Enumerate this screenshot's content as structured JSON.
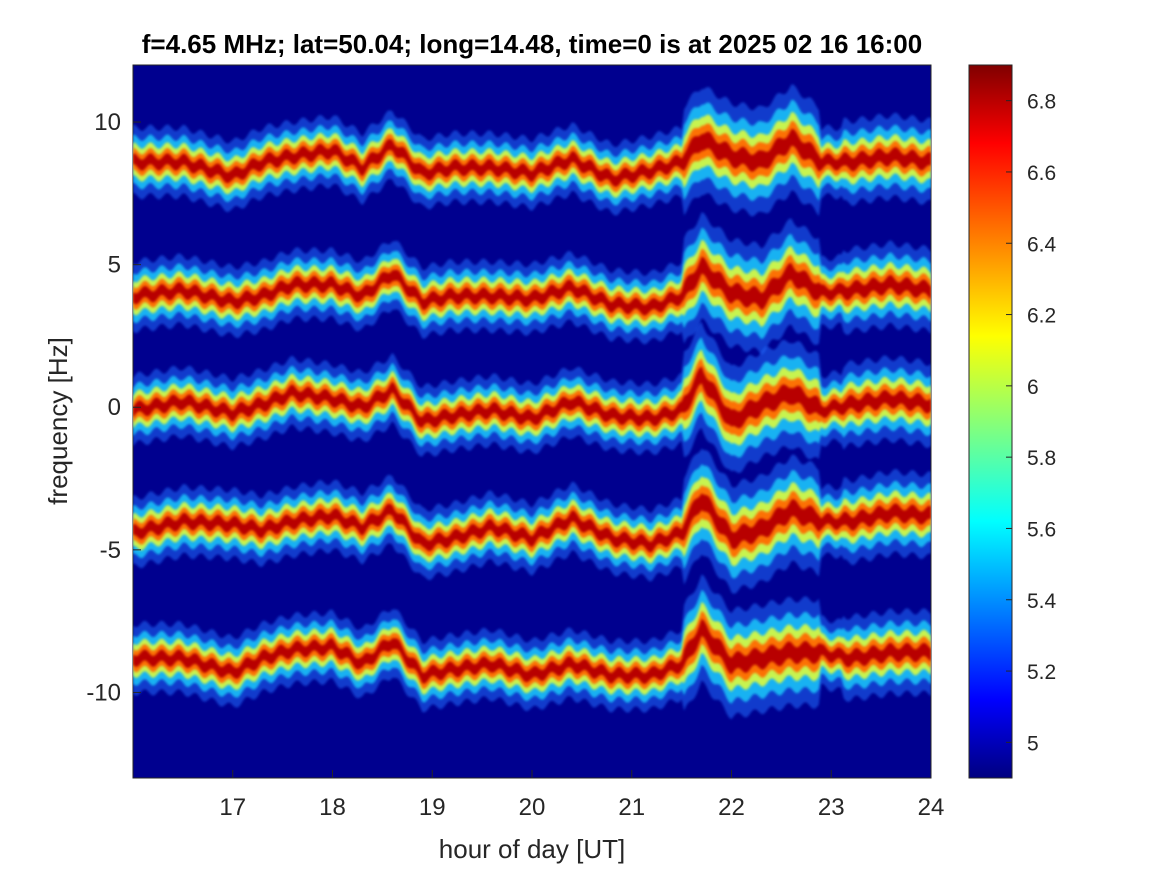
{
  "chart_data": {
    "type": "heatmap",
    "title": "f=4.65 MHz;  lat=50.04; long=14.48, time=0 is at 2025 02 16 16:00",
    "xlabel": "hour of day [UT]",
    "ylabel": "frequency [Hz]",
    "xlim": [
      16,
      24
    ],
    "ylim": [
      -13,
      12
    ],
    "xticks": [
      17,
      18,
      19,
      20,
      21,
      22,
      23,
      24
    ],
    "yticks": [
      10,
      5,
      0,
      -5,
      -10
    ],
    "colormap": "jet",
    "colorbar": {
      "clim": [
        4.9,
        6.9
      ],
      "ticks": [
        6.8,
        6.6,
        6.4,
        6.2,
        6,
        5.8,
        5.6,
        5.4,
        5.2,
        5
      ]
    },
    "background_value": 4.9,
    "series": [
      {
        "center_hz": 8.6,
        "hours": [
          16,
          16.5,
          17,
          17.3,
          17.6,
          18,
          18.3,
          18.6,
          18.9,
          19.2,
          19.6,
          20,
          20.4,
          20.8,
          21.2,
          21.5,
          21.7,
          22,
          22.3,
          22.6,
          22.9,
          23.2,
          23.6,
          24
        ],
        "deviation_hz": [
          0,
          0,
          -0.5,
          0,
          0.2,
          0.4,
          -0.2,
          0.6,
          -0.4,
          -0.2,
          -0.2,
          -0.4,
          0.1,
          -0.6,
          -0.3,
          0,
          0.8,
          0.2,
          0,
          0.8,
          0,
          0,
          0.2,
          0
        ]
      },
      {
        "center_hz": 4.1,
        "hours": [
          16,
          16.5,
          17,
          17.3,
          17.6,
          18,
          18.3,
          18.6,
          18.9,
          19.2,
          19.6,
          20,
          20.4,
          20.8,
          21.2,
          21.5,
          21.7,
          22,
          22.3,
          22.6,
          22.9,
          23.2,
          23.6,
          24
        ],
        "deviation_hz": [
          -0.2,
          0,
          -0.4,
          -0.2,
          0.2,
          0.2,
          -0.2,
          0.6,
          -0.4,
          -0.2,
          -0.2,
          -0.3,
          0.1,
          -0.5,
          -0.6,
          -0.2,
          0.8,
          -0.1,
          -0.3,
          0.6,
          -0.1,
          0,
          0.2,
          0
        ]
      },
      {
        "center_hz": 0.1,
        "hours": [
          16,
          16.5,
          17,
          17.3,
          17.6,
          18,
          18.3,
          18.6,
          18.9,
          19.2,
          19.6,
          20,
          20.4,
          20.8,
          21.2,
          21.5,
          21.7,
          22,
          22.3,
          22.6,
          22.9,
          23.2,
          23.6,
          24
        ],
        "deviation_hz": [
          -0.2,
          0.1,
          -0.3,
          0,
          0.4,
          0.2,
          -0.1,
          0.5,
          -0.6,
          -0.4,
          -0.2,
          -0.5,
          0.1,
          -0.4,
          -0.5,
          -0.2,
          1.0,
          -0.6,
          0,
          0.4,
          -0.2,
          0,
          0.2,
          0
        ]
      },
      {
        "center_hz": -4.0,
        "hours": [
          16,
          16.5,
          17,
          17.3,
          17.6,
          18,
          18.3,
          18.6,
          18.9,
          19.2,
          19.6,
          20,
          20.4,
          20.8,
          21.2,
          21.5,
          21.7,
          22,
          22.3,
          22.6,
          22.9,
          23.2,
          23.6,
          24
        ],
        "deviation_hz": [
          -0.4,
          0,
          -0.1,
          -0.3,
          0,
          0.2,
          -0.2,
          0.4,
          -0.8,
          -0.6,
          -0.2,
          -0.6,
          0.1,
          -0.6,
          -0.8,
          -0.4,
          0.8,
          -0.6,
          -0.3,
          0.4,
          0,
          0,
          0.3,
          0.2
        ]
      },
      {
        "center_hz": -8.8,
        "hours": [
          16,
          16.5,
          17,
          17.3,
          17.6,
          18,
          18.3,
          18.6,
          18.9,
          19.2,
          19.6,
          20,
          20.4,
          20.8,
          21.2,
          21.5,
          21.7,
          22,
          22.3,
          22.6,
          22.9,
          23.2,
          23.6,
          24
        ],
        "deviation_hz": [
          0,
          0,
          -0.5,
          0,
          0.3,
          0.4,
          -0.2,
          0.6,
          -0.6,
          -0.4,
          -0.2,
          -0.6,
          -0.2,
          -0.6,
          -0.6,
          -0.2,
          1.0,
          -0.2,
          0,
          0.2,
          0.2,
          0,
          0.2,
          0.2
        ]
      }
    ]
  }
}
